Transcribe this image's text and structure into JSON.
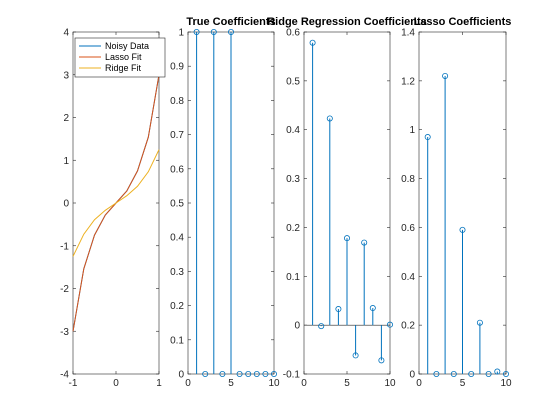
{
  "chart_data": [
    {
      "type": "line",
      "xlim": [
        -1,
        1
      ],
      "ylim": [
        -4,
        4
      ],
      "xticks": [
        -1,
        0,
        1
      ],
      "yticks": [
        -4,
        -3,
        -2,
        -1,
        0,
        1,
        2,
        3,
        4
      ],
      "legend": {
        "placement": "top-left",
        "entries": [
          "Noisy Data",
          "Lasso Fit",
          "Ridge Fit"
        ]
      },
      "series": [
        {
          "name": "Noisy Data",
          "color": "#0072BD",
          "x": [
            -1,
            -0.75,
            -0.5,
            -0.25,
            0,
            0.25,
            0.5,
            0.75,
            1
          ],
          "y": [
            -3.0,
            -1.54,
            -0.75,
            -0.28,
            0,
            0.28,
            0.75,
            1.54,
            3.0
          ]
        },
        {
          "name": "Lasso Fit",
          "color": "#D95319",
          "x": [
            -1,
            -0.75,
            -0.5,
            -0.25,
            0,
            0.25,
            0.5,
            0.75,
            1
          ],
          "y": [
            -3.0,
            -1.54,
            -0.75,
            -0.28,
            0,
            0.28,
            0.75,
            1.54,
            3.0
          ]
        },
        {
          "name": "Ridge Fit",
          "color": "#EDB120",
          "x": [
            -1,
            -0.75,
            -0.5,
            -0.25,
            0,
            0.25,
            0.5,
            0.75,
            1
          ],
          "y": [
            -1.25,
            -0.73,
            -0.39,
            -0.17,
            0,
            0.17,
            0.39,
            0.73,
            1.25
          ]
        }
      ]
    },
    {
      "type": "stem",
      "title": "True Coefficients",
      "xlim": [
        0,
        10
      ],
      "ylim": [
        0,
        1
      ],
      "xticks": [
        0,
        5,
        10
      ],
      "yticks": [
        0,
        0.1,
        0.2,
        0.3,
        0.4,
        0.5,
        0.6,
        0.7,
        0.8,
        0.9,
        1
      ],
      "color": "#0072BD",
      "x": [
        1,
        2,
        3,
        4,
        5,
        6,
        7,
        8,
        9,
        10
      ],
      "values": [
        1,
        0,
        1,
        0,
        1,
        0,
        0,
        0,
        0,
        0
      ]
    },
    {
      "type": "stem",
      "title": "Ridge Regression Coefficients",
      "xlim": [
        0,
        10
      ],
      "ylim": [
        -0.1,
        0.6
      ],
      "xticks": [
        0,
        5,
        10
      ],
      "yticks": [
        -0.1,
        0,
        0.1,
        0.2,
        0.3,
        0.4,
        0.5,
        0.6
      ],
      "color": "#0072BD",
      "x": [
        1,
        2,
        3,
        4,
        5,
        6,
        7,
        8,
        9,
        10
      ],
      "values": [
        0.578,
        -0.002,
        0.423,
        0.033,
        0.178,
        -0.062,
        0.169,
        0.035,
        -0.072,
        0.001
      ]
    },
    {
      "type": "stem",
      "title": "Lasso Coefficients",
      "xlim": [
        0,
        10
      ],
      "ylim": [
        0,
        1.4
      ],
      "xticks": [
        0,
        5,
        10
      ],
      "yticks": [
        0,
        0.2,
        0.4,
        0.6,
        0.8,
        1,
        1.2,
        1.4
      ],
      "color": "#0072BD",
      "x": [
        1,
        2,
        3,
        4,
        5,
        6,
        7,
        8,
        9,
        10
      ],
      "values": [
        0.97,
        0,
        1.22,
        0,
        0.59,
        0,
        0.21,
        0,
        0.01,
        0
      ]
    }
  ]
}
